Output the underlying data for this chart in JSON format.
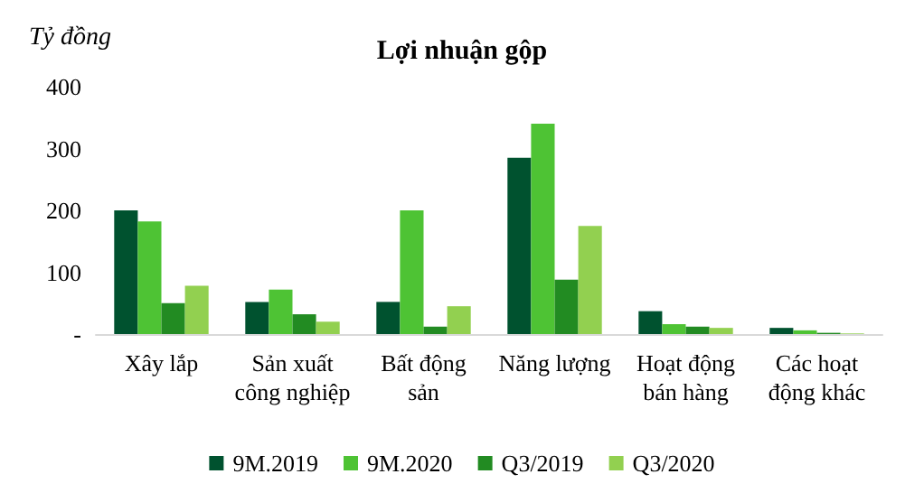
{
  "chart_data": {
    "type": "bar",
    "title": "Lợi nhuận gộp",
    "ylabel": "Tỷ đồng",
    "categories": [
      "Xây lắp",
      "Sản xuất\ncông nghiệp",
      "Bất động\nsản",
      "Năng lượng",
      "Hoạt động\nbán hàng",
      "Các hoạt\nđộng khác"
    ],
    "series": [
      {
        "name": "9M.2019",
        "color": "#00522f",
        "values": [
          200,
          52,
          52,
          285,
          37,
          10
        ]
      },
      {
        "name": "9M.2020",
        "color": "#4ec334",
        "values": [
          182,
          72,
          200,
          340,
          16,
          6
        ]
      },
      {
        "name": "Q3/2019",
        "color": "#228b22",
        "values": [
          50,
          32,
          12,
          88,
          12,
          2
        ]
      },
      {
        "name": "Q3/2020",
        "color": "#92d050",
        "values": [
          78,
          20,
          45,
          175,
          10,
          1
        ]
      }
    ],
    "ylim": [
      0,
      400
    ],
    "yticks": [
      {
        "value": 0,
        "label": "-"
      },
      100,
      200,
      300,
      400
    ],
    "grid": false,
    "legend": "bottom"
  }
}
